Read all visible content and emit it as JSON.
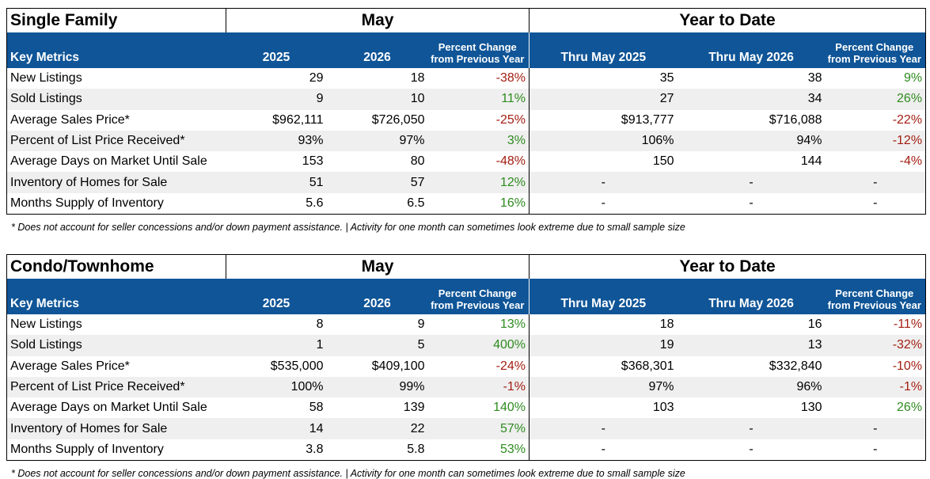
{
  "tables": [
    {
      "title": "Single Family",
      "groups": [
        "May",
        "Year to Date"
      ],
      "header": {
        "label": "Key Metrics",
        "columns": [
          [
            "2025"
          ],
          [
            "2026"
          ],
          [
            "Percent Change",
            "from Previous Year"
          ],
          [
            "Thru May 2025"
          ],
          [
            "Thru May 2026"
          ],
          [
            "Percent Change",
            "from Previous Year"
          ]
        ]
      },
      "rows": [
        [
          "New Listings",
          "29",
          "18",
          "-38%",
          "35",
          "38",
          "9%"
        ],
        [
          "Sold Listings",
          "9",
          "10",
          "11%",
          "27",
          "34",
          "26%"
        ],
        [
          "Average Sales Price*",
          "$962,111",
          "$726,050",
          "-25%",
          "$913,777",
          "$716,088",
          "-22%"
        ],
        [
          "Percent of List Price Received*",
          "93%",
          "97%",
          "3%",
          "106%",
          "94%",
          "-12%"
        ],
        [
          "Average Days on Market Until Sale",
          "153",
          "80",
          "-48%",
          "150",
          "144",
          "-4%"
        ],
        [
          "Inventory of Homes for Sale",
          "51",
          "57",
          "12%",
          "-",
          "-",
          "-"
        ],
        [
          "Months Supply of Inventory",
          "5.6",
          "6.5",
          "16%",
          "-",
          "-",
          "-"
        ]
      ],
      "footnote": "* Does not account for seller concessions and/or down payment assistance. | Activity for one month can sometimes look extreme due to small sample size"
    },
    {
      "title": "Condo/Townhome",
      "groups": [
        "May",
        "Year to Date"
      ],
      "header": {
        "label": "Key Metrics",
        "columns": [
          [
            "2025"
          ],
          [
            "2026"
          ],
          [
            "Percent Change",
            "from Previous Year"
          ],
          [
            "Thru May 2025"
          ],
          [
            "Thru May 2026"
          ],
          [
            "Percent Change",
            "from Previous Year"
          ]
        ]
      },
      "rows": [
        [
          "New Listings",
          "8",
          "9",
          "13%",
          "18",
          "16",
          "-11%"
        ],
        [
          "Sold Listings",
          "1",
          "5",
          "400%",
          "19",
          "13",
          "-32%"
        ],
        [
          "Average Sales Price*",
          "$535,000",
          "$409,100",
          "-24%",
          "$368,301",
          "$332,840",
          "-10%"
        ],
        [
          "Percent of List Price Received*",
          "100%",
          "99%",
          "-1%",
          "97%",
          "96%",
          "-1%"
        ],
        [
          "Average Days on Market Until Sale",
          "58",
          "139",
          "140%",
          "103",
          "130",
          "26%"
        ],
        [
          "Inventory of Homes for Sale",
          "14",
          "22",
          "57%",
          "-",
          "-",
          "-"
        ],
        [
          "Months Supply of Inventory",
          "3.8",
          "5.8",
          "53%",
          "-",
          "-",
          "-"
        ]
      ],
      "footnote": "* Does not account for seller concessions and/or down payment assistance. | Activity for one month can sometimes look extreme due to small sample size"
    }
  ]
}
